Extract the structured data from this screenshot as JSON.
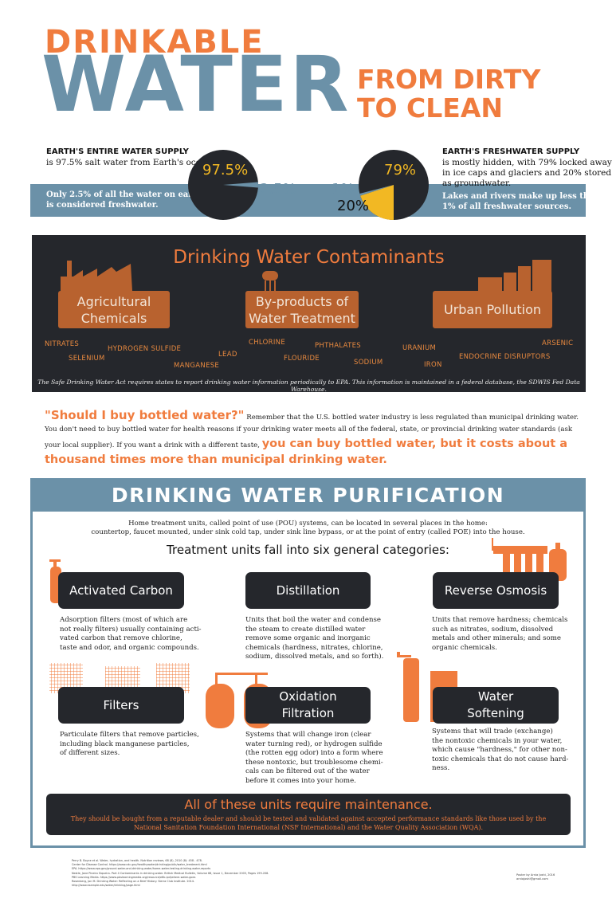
{
  "header": {
    "title_small": "DRINKABLE",
    "title_big": "WATER",
    "subtitle_line1": "FROM DIRTY",
    "subtitle_line2": "TO CLEAN"
  },
  "supply": {
    "left": {
      "heading": "EARTH'S ENTIRE WATER SUPPLY",
      "text": "is 97.5% salt water from Earth's oceans.",
      "band_line1": "Only 2.5% of all the water on earth",
      "band_line2": "is considered freshwater.",
      "pie_major_label": "97.5%",
      "pie_minor_label": "2.5%",
      "pie_major_value": 97.5,
      "pie_minor_value": 2.5
    },
    "right": {
      "heading": "EARTH'S FRESHWATER SUPPLY",
      "text_line1": "is mostly hidden, with 79% locked away",
      "text_line2": "in ice caps and glaciers and 20% stored",
      "text_line3": "as groundwater.",
      "band_line1": "Lakes and rivers make up less than",
      "band_line2": "1% of all freshwater sources.",
      "pie_labels": [
        "79%",
        "20%",
        "1%"
      ],
      "pie_values": [
        79,
        20,
        1
      ]
    },
    "colors": {
      "dark": "#25272c",
      "blue": "#6b91a8",
      "yellow": "#f2b823",
      "orange": "#f07c3e"
    }
  },
  "contaminants": {
    "title": "Drinking Water Contaminants",
    "categories": [
      {
        "line1": "Agricultural",
        "line2": "Chemicals",
        "icon": "factory-icon"
      },
      {
        "line1": "By-products of",
        "line2": "Water Treatment",
        "icon": "water-tower-icon"
      },
      {
        "line1": "Urban Pollution",
        "line2": "",
        "icon": "city-skyline-icon"
      }
    ],
    "items": [
      "NITRATES",
      "SELENIUM",
      "HYDROGEN SULFIDE",
      "MANGANESE",
      "LEAD",
      "CHLORINE",
      "FLOURIDE",
      "PHTHALATES",
      "SODIUM",
      "URANIUM",
      "IRON",
      "ENDOCRINE DISRUPTORS",
      "ARSENIC"
    ],
    "footnote": "The Safe Drinking Water Act requires states to report drinking water information periodically to EPA. This information is maintained in a federal database, the SDWIS Fed Data Warehouse."
  },
  "bottled": {
    "question": "\"Should I buy bottled water?\"",
    "text1": " Remember that the U.S. bottled water industry is less regulated than municipal drinking water. You don't need to buy bottled water for health reasons if your drinking water meets all of the federal, state, or provincial drinking water standards (ask your local supplier). If you want a drink with a different taste, ",
    "emphasis": "you can buy bottled water, but it costs about a thousand times more than municipal drinking water."
  },
  "purification": {
    "title": "DRINKING WATER PURIFICATION",
    "intro_line1": "Home treatment units, called point of use (POU) systems, can be located in several places in the home:",
    "intro_line2": "countertop, faucet mounted, under sink cold tap, under sink line bypass, or at the point of entry (called POE) into the house.",
    "categories_heading": "Treatment units fall into six general categories:",
    "units": [
      {
        "line1": "Activated Carbon",
        "line2": "",
        "icon": "carbon-filter-icon",
        "desc": [
          "Adsorption filters (most of which are",
          "not really filters) usually containing acti-",
          "vated carbon that remove chlorine,",
          "taste and odor, and organic compounds."
        ]
      },
      {
        "line1": "Distillation",
        "line2": "",
        "icon": "",
        "desc": [
          "Units that boil the water and condense",
          "the steam to create distilled water",
          "remove some organic and inorganic",
          "chemicals (hardness, nitrates, chlorine,",
          "sodium, dissolved metals, and so forth)."
        ]
      },
      {
        "line1": "Reverse Osmosis",
        "line2": "",
        "icon": "reverse-osmosis-system-icon",
        "desc": [
          "Units that remove hardness; chemicals",
          "such as nitrates, sodium, dissolved",
          "metals and other minerals; and some",
          "organic chemicals."
        ]
      },
      {
        "line1": "Filters",
        "line2": "",
        "icon": "filter-mesh-icon",
        "desc": [
          "Particulate filters that remove particles,",
          "including black manganese particles,",
          "of different sizes."
        ]
      },
      {
        "line1": "Oxidation",
        "line2": "Filtration",
        "icon": "oxidation-tanks-icon",
        "desc": [
          "Systems that will change iron (clear",
          "water turning red), or hydrogen sulfide",
          "(the rotten egg odor) into a form where",
          "these nontoxic, but troublesome chemi-",
          "cals can be filtered out of the water",
          "before it comes into your home."
        ]
      },
      {
        "line1": "Water",
        "line2": "Softening",
        "icon": "water-softener-icon",
        "desc": [
          "Systems that will trade (exchange)",
          "the nontoxic chemicals in your water,",
          "which cause \"hardness,\" for other non-",
          "toxic chemicals that do not cause hard-",
          "ness."
        ]
      }
    ],
    "maintenance_heading": "All of these units require maintenance.",
    "maintenance_text_line1": "They should be bought from a reputable dealer and should be tested and validated against accepted performance standards like those used by the",
    "maintenance_text_line2": "National Sanitation Foundation International (NSF International) and the Water Quality Association (WQA)."
  },
  "credits": {
    "lines": [
      "Perry B. Boyce et al. Water, hydration, and health. Nutrition reviews, 68 (8), 2010 (8): 458 - 478.",
      "Center for Disease Control. https://www.cdc.gov/healthywater/drinking/public/water_treatment.html",
      "EPA. https://www.epa.gov/ground-water-and-drinking-water/home-water-testing-drinking-water-reports",
      "Nestle, Jane Pineiro Siqueira. Part 4 Contaminants in drinking water. British Medical Bulletin, Volume 68, Issue 1, December 2003, Pages 199-208.",
      "PBS Learning Media. https://www.pbslearningmedia.org/resource/e6b-ipd/where-water-goes",
      "Rosenberg, Jon M. Drinking Water: Reflecting on a Brief History. Sierra Club Institute. 2014.",
      "http://www.example.edu/water/drinking/page.html"
    ],
    "author_line1": "Poster by Arnia Joshi, 2016",
    "author_line2": "arniajoshi@gmail.com"
  }
}
